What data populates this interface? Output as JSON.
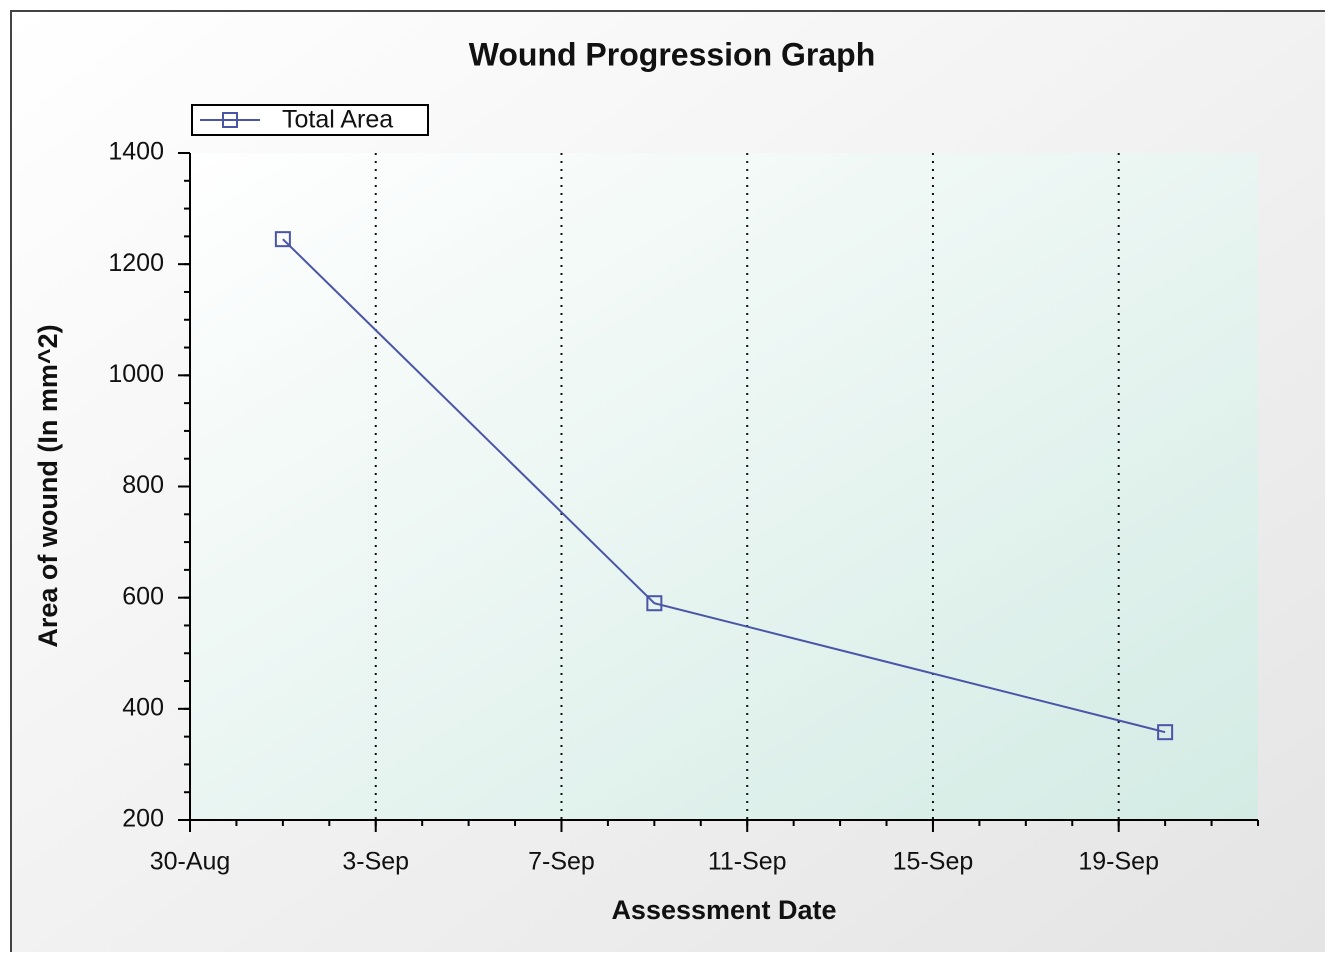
{
  "chart_data": {
    "type": "line",
    "title": "Wound Progression Graph",
    "x_label": "Assessment Date",
    "y_label": "Area of wound (In mm^2)",
    "x": [
      "1-Sep",
      "9-Sep",
      "20-Sep"
    ],
    "series": [
      {
        "name": "Total Area",
        "color": "#4a55a8",
        "values": [
          1245,
          590,
          358
        ]
      }
    ],
    "xlim": [
      "30-Aug",
      "22-Sep"
    ],
    "xticks": [
      "30-Aug",
      "3-Sep",
      "7-Sep",
      "11-Sep",
      "15-Sep",
      "19-Sep"
    ],
    "ylim": [
      200,
      1400
    ],
    "yticks": [
      200,
      400,
      600,
      800,
      1000,
      1200,
      1400
    ],
    "grid": true,
    "legend": "top-left"
  }
}
